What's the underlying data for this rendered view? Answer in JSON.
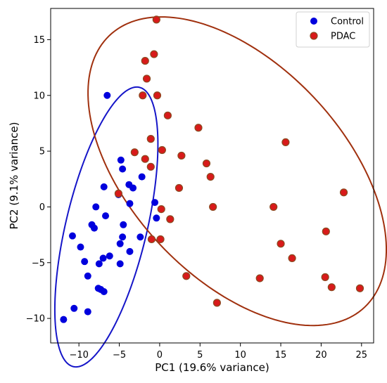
{
  "chart_data": {
    "type": "scatter",
    "xlabel": "PC1 (19.6% variance)",
    "ylabel": "PC2 (9.1% variance)",
    "xlim": [
      -13.5,
      26.5
    ],
    "ylim": [
      -12.2,
      17.8
    ],
    "xticks": [
      -10,
      -5,
      0,
      5,
      10,
      15,
      20,
      25
    ],
    "yticks": [
      -10,
      -5,
      0,
      5,
      10,
      15
    ],
    "grid": false,
    "legend_position": "top-right",
    "series": [
      {
        "name": "Control",
        "color": "#0000dd",
        "ellipse_color": "#1515c8",
        "ellipse": {
          "cx": -6.6,
          "cy": -1.8,
          "rx": 13.2,
          "ry": 4.9,
          "angle_deg": 70.5
        },
        "points": [
          [
            -6.5,
            10.0
          ],
          [
            -4.8,
            4.2
          ],
          [
            -4.6,
            3.4
          ],
          [
            -3.8,
            2.0
          ],
          [
            -2.2,
            2.7
          ],
          [
            -3.3,
            1.7
          ],
          [
            -6.9,
            1.8
          ],
          [
            -5.1,
            1.1
          ],
          [
            -3.7,
            0.3
          ],
          [
            -0.6,
            0.4
          ],
          [
            -7.9,
            0.0
          ],
          [
            -0.4,
            -1.0
          ],
          [
            -6.7,
            -0.8
          ],
          [
            -8.4,
            -1.6
          ],
          [
            -8.1,
            -1.9
          ],
          [
            -4.5,
            -1.6
          ],
          [
            -10.8,
            -2.6
          ],
          [
            -2.4,
            -2.7
          ],
          [
            -4.6,
            -2.7
          ],
          [
            -4.9,
            -3.3
          ],
          [
            -9.8,
            -3.6
          ],
          [
            -3.7,
            -4.0
          ],
          [
            -6.2,
            -4.4
          ],
          [
            -7.0,
            -4.6
          ],
          [
            -9.3,
            -4.9
          ],
          [
            -7.5,
            -5.1
          ],
          [
            -4.9,
            -5.1
          ],
          [
            -8.9,
            -6.2
          ],
          [
            -7.6,
            -7.3
          ],
          [
            -7.3,
            -7.4
          ],
          [
            -6.9,
            -7.6
          ],
          [
            -10.6,
            -9.1
          ],
          [
            -8.9,
            -9.4
          ],
          [
            -11.9,
            -10.1
          ]
        ]
      },
      {
        "name": "PDAC",
        "color": "#d81a1a",
        "edge_color": "#8a4a20",
        "ellipse_color": "#a0300e",
        "ellipse": {
          "cx": 9.6,
          "cy": 3.2,
          "rx": 20.4,
          "ry": 10.8,
          "angle_deg": -30.0
        },
        "points": [
          [
            -0.4,
            16.8
          ],
          [
            -0.7,
            13.7
          ],
          [
            -1.8,
            13.1
          ],
          [
            -1.6,
            11.5
          ],
          [
            -2.1,
            10.0
          ],
          [
            -0.3,
            10.0
          ],
          [
            1.0,
            8.2
          ],
          [
            4.8,
            7.1
          ],
          [
            -1.1,
            6.1
          ],
          [
            15.6,
            5.8
          ],
          [
            0.3,
            5.1
          ],
          [
            -3.1,
            4.9
          ],
          [
            2.7,
            4.6
          ],
          [
            -1.8,
            4.3
          ],
          [
            5.8,
            3.9
          ],
          [
            -1.1,
            3.6
          ],
          [
            6.3,
            2.7
          ],
          [
            2.4,
            1.7
          ],
          [
            22.8,
            1.3
          ],
          [
            -5.1,
            1.2
          ],
          [
            0.2,
            -0.2
          ],
          [
            6.6,
            0.0
          ],
          [
            14.1,
            0.0
          ],
          [
            1.3,
            -1.1
          ],
          [
            20.6,
            -2.2
          ],
          [
            -1.0,
            -2.9
          ],
          [
            0.1,
            -2.9
          ],
          [
            15.0,
            -3.3
          ],
          [
            16.4,
            -4.6
          ],
          [
            3.3,
            -6.2
          ],
          [
            12.4,
            -6.4
          ],
          [
            20.5,
            -6.3
          ],
          [
            21.3,
            -7.2
          ],
          [
            24.8,
            -7.3
          ],
          [
            7.1,
            -8.6
          ]
        ]
      }
    ]
  }
}
